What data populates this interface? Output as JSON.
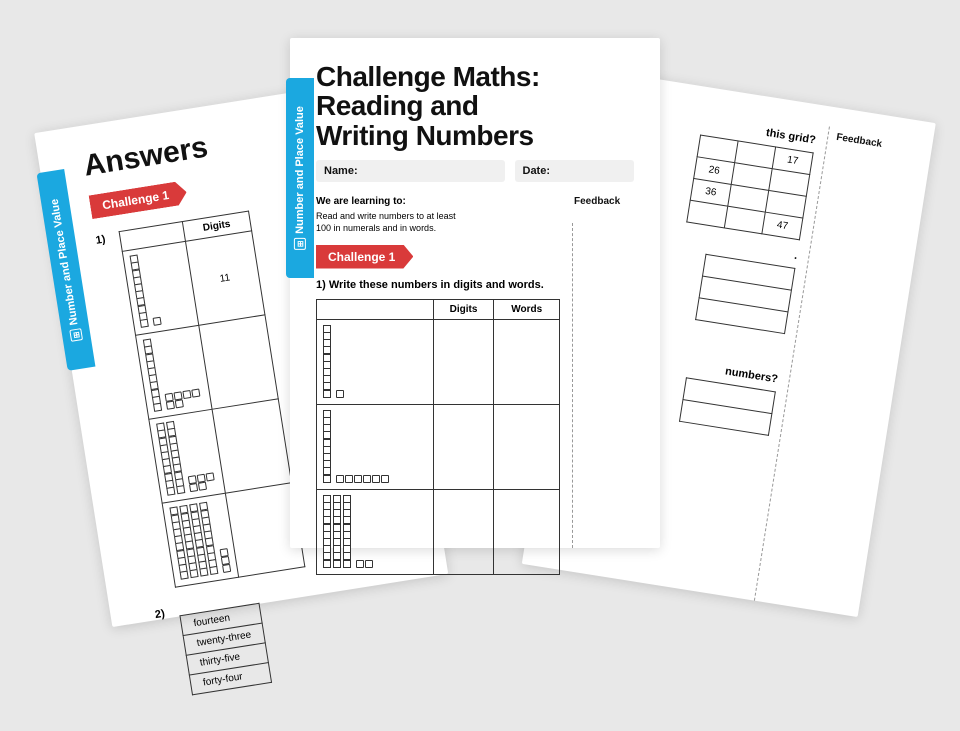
{
  "tab_label": "Number and Place Value",
  "left": {
    "title": "Answers",
    "challenge": "Challenge 1",
    "q1": "1)",
    "digits_header": "Digits",
    "cell_value": "11",
    "q2": "2)",
    "words": [
      "fourteen",
      "twenty-three",
      "thirty-five",
      "forty-four"
    ]
  },
  "center": {
    "title_l1": "Challenge Maths:",
    "title_l2": "Reading and",
    "title_l3": "Writing Numbers",
    "name_label": "Name:",
    "date_label": "Date:",
    "learning_label": "We are learning to:",
    "learning_text": "Read and write numbers to at least 100 in numerals and in words.",
    "challenge": "Challenge 1",
    "q1": "1) Write these numbers in digits and words.",
    "col_digits": "Digits",
    "col_words": "Words",
    "feedback": "Feedback"
  },
  "right": {
    "q_grid": "this grid?",
    "feedback": "Feedback",
    "grid_vals": {
      "r1c3": "17",
      "r2c1": "26",
      "r3c1": "36",
      "r4c3": "47"
    },
    "q_numbers": "numbers?",
    "dots": "."
  },
  "colors": {
    "tab": "#1ba8e0",
    "badge": "#d93a3a",
    "bg": "#e8e8e8",
    "field_bg": "#f0f0f0",
    "text": "#111111",
    "border": "#333333"
  }
}
